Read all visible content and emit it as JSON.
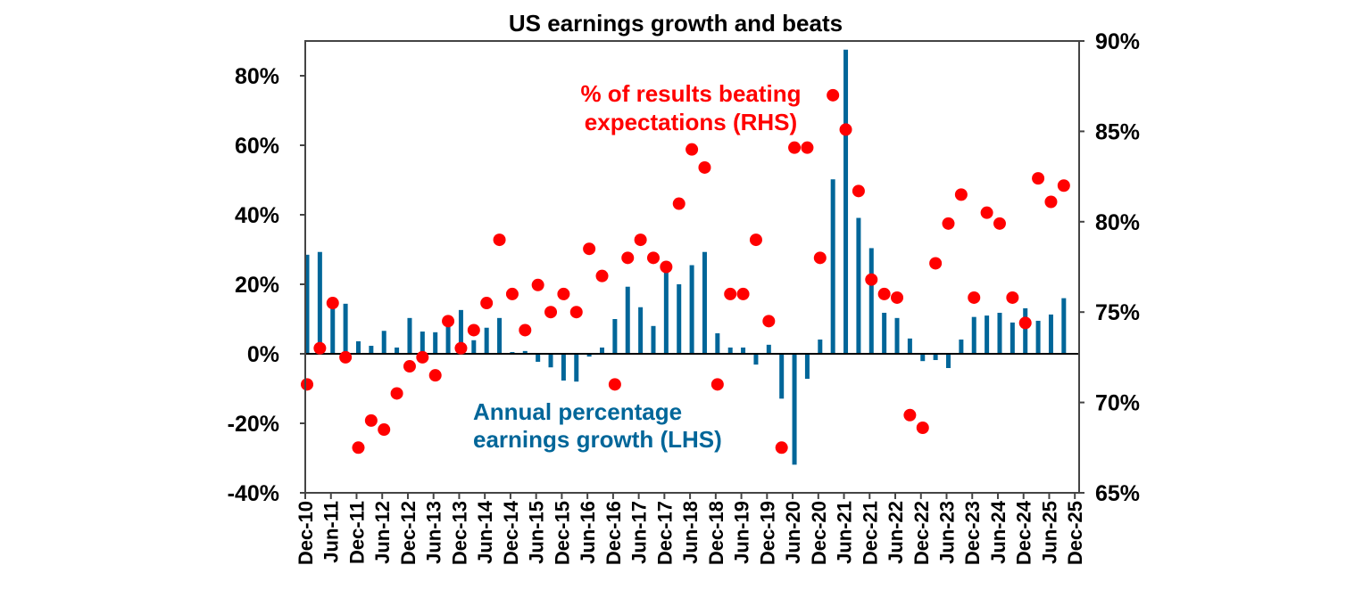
{
  "chart_data": {
    "type": "bar+scatter",
    "title": "US earnings growth and beats",
    "grid": false,
    "categories": [
      "Dec-10",
      "Mar-11",
      "Jun-11",
      "Sep-11",
      "Dec-11",
      "Mar-12",
      "Jun-12",
      "Sep-12",
      "Dec-12",
      "Mar-13",
      "Jun-13",
      "Sep-13",
      "Dec-13",
      "Mar-14",
      "Jun-14",
      "Sep-14",
      "Dec-14",
      "Mar-15",
      "Jun-15",
      "Sep-15",
      "Dec-15",
      "Mar-16",
      "Jun-16",
      "Sep-16",
      "Dec-16",
      "Mar-17",
      "Jun-17",
      "Sep-17",
      "Dec-17",
      "Mar-18",
      "Jun-18",
      "Sep-18",
      "Dec-18",
      "Mar-19",
      "Jun-19",
      "Sep-19",
      "Dec-19",
      "Mar-20",
      "Jun-20",
      "Sep-20",
      "Dec-20",
      "Mar-21",
      "Jun-21",
      "Sep-21",
      "Dec-21",
      "Mar-22",
      "Jun-22",
      "Sep-22",
      "Dec-22",
      "Mar-23",
      "Jun-23",
      "Sep-23",
      "Dec-23",
      "Mar-24",
      "Jun-24",
      "Sep-24",
      "Dec-24",
      "Mar-25",
      "Jun-25",
      "Sep-25"
    ],
    "x_tick_labels": [
      "Dec-10",
      "Jun-11",
      "Dec-11",
      "Jun-12",
      "Dec-12",
      "Jun-13",
      "Dec-13",
      "Jun-14",
      "Dec-14",
      "Jun-15",
      "Dec-15",
      "Jun-16",
      "Dec-16",
      "Jun-17",
      "Dec-17",
      "Jun-18",
      "Dec-18",
      "Jun-19",
      "Dec-19",
      "Jun-20",
      "Dec-20",
      "Jun-21",
      "Dec-21",
      "Jun-22",
      "Dec-22",
      "Jun-23",
      "Dec-23",
      "Jun-24",
      "Dec-24",
      "Jun-25",
      "Dec-25"
    ],
    "left_axis": {
      "ylim": [
        -40,
        90
      ],
      "ticks": [
        -40,
        -20,
        0,
        20,
        40,
        60,
        80
      ],
      "tick_labels": [
        "-40%",
        "-20%",
        "0%",
        "20%",
        "40%",
        "60%",
        "80%"
      ]
    },
    "right_axis": {
      "ylim": [
        65,
        90
      ],
      "ticks": [
        65,
        70,
        75,
        80,
        85,
        90
      ],
      "tick_labels": [
        "65%",
        "70%",
        "75%",
        "80%",
        "85%",
        "90%"
      ]
    },
    "series": [
      {
        "name": "Annual percentage earnings growth (LHS)",
        "type": "bar",
        "axis": "left",
        "color": "#006699",
        "label_lines": [
          "Annual percentage",
          "earnings growth (LHS)"
        ],
        "values": [
          28.5,
          29.3,
          15,
          14.4,
          3.6,
          2.3,
          6.6,
          1.8,
          10.3,
          6.4,
          6.2,
          8,
          12.6,
          3.9,
          7.5,
          10.3,
          0.5,
          0.8,
          -2.3,
          -3.9,
          -7.7,
          -8,
          -0.8,
          1.8,
          10,
          19.3,
          13.4,
          8,
          24.5,
          20,
          25.5,
          29.3,
          5.9,
          1.8,
          1.8,
          -3.1,
          2.6,
          -12.9,
          -31.9,
          -7.2,
          4.1,
          50.2,
          87.5,
          39.1,
          30.4,
          11.8,
          10.3,
          4.4,
          -2.1,
          -1.8,
          -4.1,
          4.1,
          10.6,
          11,
          11.8,
          9,
          13.1,
          9.5,
          11.3,
          16
        ]
      },
      {
        "name": "% of results beating expectations (RHS)",
        "type": "scatter",
        "axis": "right",
        "color": "#ff0000",
        "label_lines": [
          "% of results beating",
          "expectations (RHS)"
        ],
        "values": [
          71,
          73,
          75.5,
          72.5,
          67.5,
          69,
          68.5,
          70.5,
          72,
          72.5,
          71.5,
          74.5,
          73,
          74,
          75.5,
          79,
          76,
          74,
          76.5,
          75,
          76,
          75,
          78.5,
          77,
          71,
          78,
          79,
          78,
          77.5,
          81,
          84,
          83,
          71,
          76,
          76,
          79,
          74.5,
          67.5,
          84.1,
          84.1,
          78,
          87,
          85.1,
          81.7,
          76.8,
          76,
          75.8,
          69.3,
          68.6,
          77.7,
          79.9,
          81.5,
          75.8,
          80.5,
          79.9,
          75.8,
          74.4,
          82.4,
          81.1,
          82
        ]
      }
    ]
  }
}
